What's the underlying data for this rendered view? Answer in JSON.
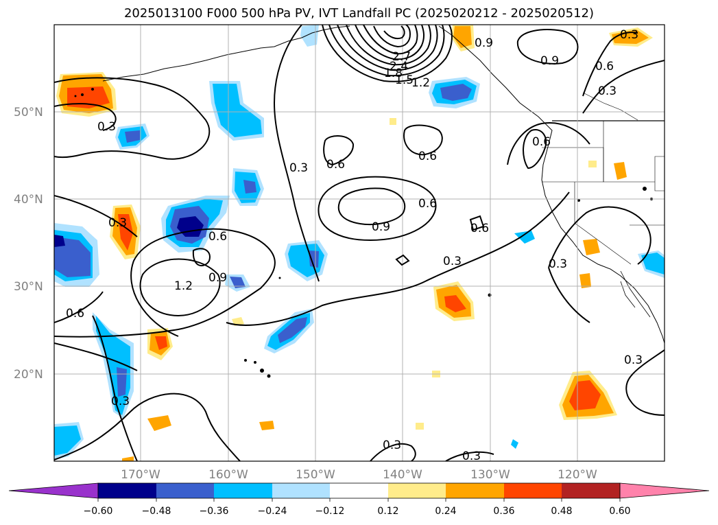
{
  "title": "2025013100 F000 500 hPa PV, IVT Landfall PC (2025020212 - 2025020512)",
  "lat_labels": [
    "50°N",
    "40°N",
    "30°N",
    "20°N"
  ],
  "lon_labels": [
    "170°W",
    "160°W",
    "150°W",
    "140°W",
    "130°W",
    "120°W"
  ],
  "colorbar": {
    "ticks": [
      "−0.60",
      "−0.48",
      "−0.36",
      "−0.24",
      "−0.12",
      "0.12",
      "0.24",
      "0.36",
      "0.48",
      "0.60"
    ],
    "colors": [
      "#9932cc",
      "#00008b",
      "#3a5fcd",
      "#00bfff",
      "#b0e2ff",
      "#ffffff",
      "#ffec8b",
      "#ffa500",
      "#ff4500",
      "#b22222",
      "#ff82ab"
    ]
  },
  "contour_labels": [
    "2.7",
    "2.4",
    "1.8",
    "1.5",
    "1.2",
    "0.9",
    "0.9",
    "0.6",
    "0.3",
    "0.3",
    "0.3",
    "0.6",
    "0.6",
    "0.6",
    "0.9",
    "0.6",
    "0.6",
    "0.9",
    "1.2",
    "0.3",
    "0.3",
    "0.6",
    "0.3",
    "0.3",
    "0.3",
    "0.3",
    "0.6",
    "0.3",
    "0.3"
  ]
}
